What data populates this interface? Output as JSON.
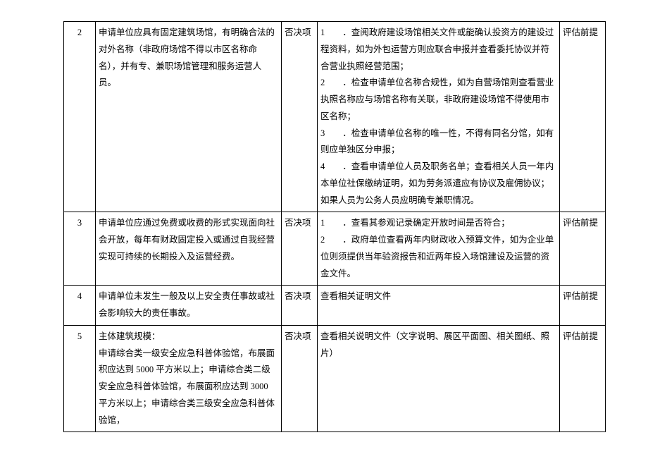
{
  "table": {
    "rows": [
      {
        "num": "2",
        "requirement": "申请单位应具有固定建筑场馆，有明确合法的对外名称（非政府场馆不得以市区名称命名），并有专、兼职场馆管理和服务运营人员。",
        "type": "否决项",
        "detail": "1　　．查阅政府建设场馆相关文件或能确认投资方的建设过程资料，如为外包运营方则应联合申报并查看委托协议并符合营业执照经营范围；\n2　　．检查申请单位名称合规性，如为自营场馆则查看营业执照名称应与场馆名称有关联，非政府建设场馆不得使用市区名称；\n3　　．检查申请单位名称的唯一性，不得有同名分馆，如有则应单独区分申报；\n4　　．查看申请单位人员及职务名单；查看相关人员一年内本单位社保缴纳证明，如为劳务派遣应有协议及雇佣协议；如果人员为公务人员应明确专兼职情况。",
        "note": "评估前提"
      },
      {
        "num": "3",
        "requirement": "申请单位应通过免费或收费的形式实现面向社会开放，每年有财政固定投入或通过自我经营实现可持续的长期投入及运营经费。",
        "type": "否决项",
        "detail": "1　　．查看其参观记录确定开放时间是否符合；\n2　　．政府单位查看两年内财政收入预算文件，如为企业单位则须提供当年验资报告和近两年投入场馆建设及运营的资金文件。",
        "note": "评估前提"
      },
      {
        "num": "4",
        "requirement": "申请单位未发生一般及以上安全责任事故或社会影响较大的责任事故。",
        "type": "否决项",
        "detail": "查看相关证明文件",
        "note": "评估前提"
      },
      {
        "num": "5",
        "requirement": "主体建筑规模：\n申请综合类一级安全应急科普体验馆，布展面积应达到 5000 平方米以上；申请综合类二级安全应急科普体验馆，布展面积应达到 3000 平方米以上；申请综合类三级安全应急科普体验馆，",
        "type": "否决项",
        "detail": "查看相关说明文件（文字说明、展区平面图、相关图纸、照片）",
        "note": "评估前提"
      }
    ]
  }
}
